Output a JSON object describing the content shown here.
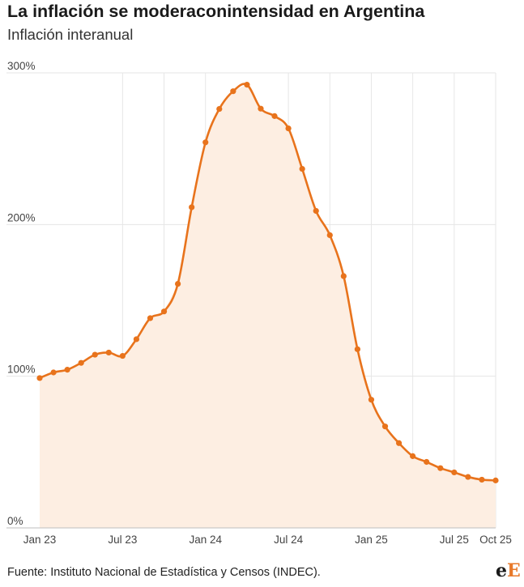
{
  "header": {
    "title": "La inflación se moderaconintensidad en Argentina",
    "subtitle": "Inflación interanual"
  },
  "footer": {
    "source": "Fuente: Instituto Nacional de Estadística y Censos (INDEC).",
    "logo_first": "e",
    "logo_second": "E"
  },
  "colors": {
    "line": "#e8731c",
    "area": "#fdeee2",
    "grid": "#e6e6e6",
    "axis_text": "#444444"
  },
  "chart_data": {
    "type": "area",
    "x_ticks": [
      "Jan 23",
      "Jul 23",
      "Jan 24",
      "Jul 24",
      "Jan 25",
      "Jul 25",
      "Oct 25"
    ],
    "x_tick_index": [
      0,
      6,
      12,
      18,
      24,
      30,
      33
    ],
    "y_ticks": [
      "0%",
      "100%",
      "200%",
      "300%"
    ],
    "y_tick_values": [
      0,
      100,
      200,
      300
    ],
    "ylim": [
      0,
      300
    ],
    "x": [
      "Jan 23",
      "Feb 23",
      "Mar 23",
      "Apr 23",
      "May 23",
      "Jun 23",
      "Jul 23",
      "Aug 23",
      "Sep 23",
      "Oct 23",
      "Nov 23",
      "Dec 23",
      "Jan 24",
      "Feb 24",
      "Mar 24",
      "Apr 24",
      "May 24",
      "Jun 24",
      "Jul 24",
      "Aug 24",
      "Sep 24",
      "Oct 24",
      "Nov 24",
      "Dec 24",
      "Jan 25",
      "Feb 25",
      "Mar 25",
      "Apr 25",
      "May 25",
      "Jun 25",
      "Jul 25",
      "Aug 25",
      "Sep 25",
      "Oct 25"
    ],
    "values": [
      98.8,
      102.5,
      104.3,
      108.8,
      114.2,
      115.6,
      113.4,
      124.4,
      138.3,
      142.7,
      160.9,
      211.4,
      254.2,
      276.2,
      287.9,
      292.2,
      276.4,
      271.5,
      263.4,
      236.7,
      209.0,
      193.0,
      166.0,
      117.8,
      84.5,
      66.9,
      55.9,
      47.3,
      43.5,
      39.4,
      36.6,
      33.6,
      31.8,
      31.3
    ],
    "grid": true
  }
}
